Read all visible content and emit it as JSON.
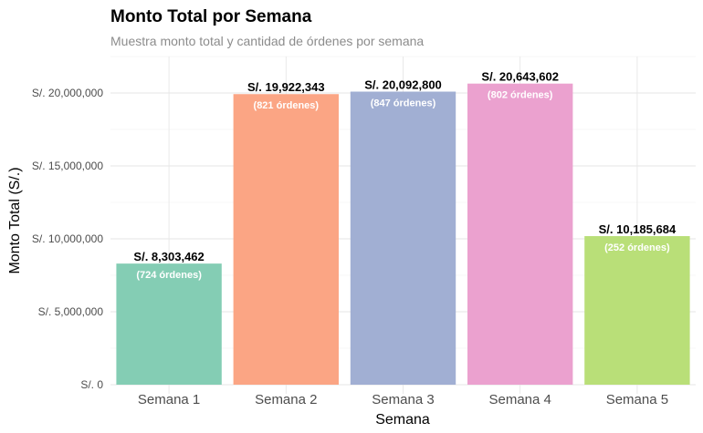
{
  "chart_data": {
    "type": "bar",
    "title": "Monto Total por Semana",
    "subtitle": "Muestra monto total y cantidad de órdenes por semana",
    "xlabel": "Semana",
    "ylabel": "Monto Total (S/.)",
    "ylim": [
      0,
      22500000
    ],
    "yticks": [
      0,
      5000000,
      10000000,
      15000000,
      20000000
    ],
    "ytick_labels": [
      "S/. 0",
      "S/. 5,000,000",
      "S/. 10,000,000",
      "S/. 15,000,000",
      "S/. 20,000,000"
    ],
    "categories": [
      "Semana 1",
      "Semana 2",
      "Semana 3",
      "Semana 4",
      "Semana 5"
    ],
    "values": [
      8303462,
      19922343,
      20092800,
      20643602,
      10185684
    ],
    "value_labels": [
      "S/. 8,303,462",
      "S/. 19,922,343",
      "S/. 20,092,800",
      "S/. 20,643,602",
      "S/. 10,185,684"
    ],
    "orders_labels": [
      "(724 órdenes)",
      "(821 órdenes)",
      "(847 órdenes)",
      "(802 órdenes)",
      "(252 órdenes)"
    ],
    "colors": [
      "#84cdb4",
      "#fba584",
      "#a1afd3",
      "#eba1cf",
      "#b9df78"
    ],
    "grid": true,
    "legend": "none"
  }
}
